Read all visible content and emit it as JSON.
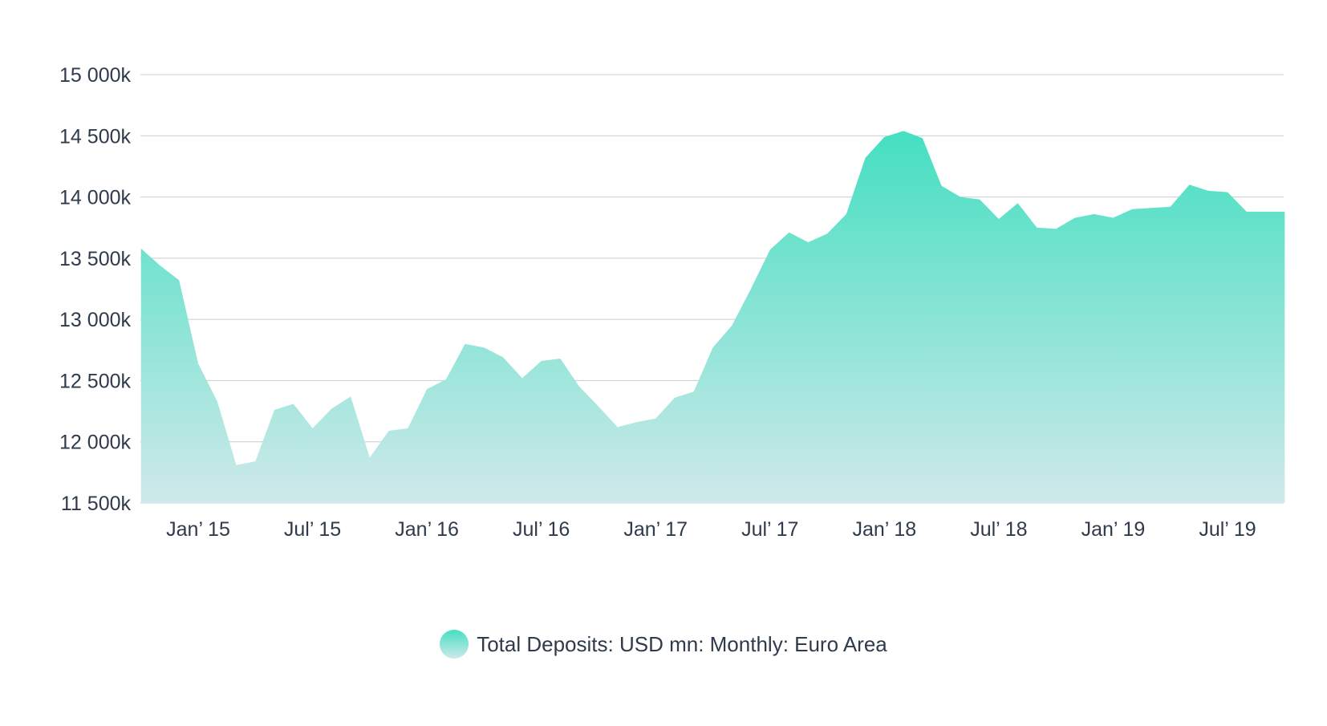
{
  "chart_data": {
    "type": "area",
    "title": "",
    "xlabel": "",
    "ylabel": "",
    "ylim": [
      11500,
      15000
    ],
    "yticks": [
      {
        "value": 15000,
        "label": "15 000k"
      },
      {
        "value": 14500,
        "label": "14 500k"
      },
      {
        "value": 14000,
        "label": "14 000k"
      },
      {
        "value": 13500,
        "label": "13 500k"
      },
      {
        "value": 13000,
        "label": "13 000k"
      },
      {
        "value": 12500,
        "label": "12 500k"
      },
      {
        "value": 12000,
        "label": "12 000k"
      },
      {
        "value": 11500,
        "label": "11 500k"
      }
    ],
    "xticks": [
      {
        "date": "2015-01",
        "label": "Jan’ 15"
      },
      {
        "date": "2015-07",
        "label": "Jul’ 15"
      },
      {
        "date": "2016-01",
        "label": "Jan’ 16"
      },
      {
        "date": "2016-07",
        "label": "Jul’ 16"
      },
      {
        "date": "2017-01",
        "label": "Jan’ 17"
      },
      {
        "date": "2017-07",
        "label": "Jul’ 17"
      },
      {
        "date": "2018-01",
        "label": "Jan’ 18"
      },
      {
        "date": "2018-07",
        "label": "Jul’ 18"
      },
      {
        "date": "2019-01",
        "label": "Jan’ 19"
      },
      {
        "date": "2019-07",
        "label": "Jul’ 19"
      }
    ],
    "grid": true,
    "legend": "bottom-center",
    "series": [
      {
        "name": "Total Deposits: USD mn: Monthly: Euro Area",
        "color_top": "#44dfc1",
        "color_bottom": "#cfe9ea",
        "x": [
          "2014-10",
          "2014-11",
          "2014-12",
          "2015-01",
          "2015-02",
          "2015-03",
          "2015-04",
          "2015-05",
          "2015-06",
          "2015-07",
          "2015-08",
          "2015-09",
          "2015-10",
          "2015-11",
          "2015-12",
          "2016-01",
          "2016-02",
          "2016-03",
          "2016-04",
          "2016-05",
          "2016-06",
          "2016-07",
          "2016-08",
          "2016-09",
          "2016-10",
          "2016-11",
          "2016-12",
          "2017-01",
          "2017-02",
          "2017-03",
          "2017-04",
          "2017-05",
          "2017-06",
          "2017-07",
          "2017-08",
          "2017-09",
          "2017-10",
          "2017-11",
          "2017-12",
          "2018-01",
          "2018-02",
          "2018-03",
          "2018-04",
          "2018-05",
          "2018-06",
          "2018-07",
          "2018-08",
          "2018-09",
          "2018-10",
          "2018-11",
          "2018-12",
          "2019-01",
          "2019-02",
          "2019-03",
          "2019-04",
          "2019-05",
          "2019-06",
          "2019-07",
          "2019-08",
          "2019-09",
          "2019-10"
        ],
        "values": [
          13580,
          13440,
          13320,
          12640,
          12330,
          11810,
          11840,
          12260,
          12310,
          12110,
          12270,
          12370,
          11870,
          12090,
          12110,
          12430,
          12510,
          12800,
          12770,
          12690,
          12520,
          12660,
          12680,
          12450,
          12290,
          12120,
          12160,
          12190,
          12360,
          12410,
          12770,
          12950,
          13250,
          13570,
          13710,
          13630,
          13700,
          13860,
          14320,
          14490,
          14540,
          14480,
          14090,
          14000,
          13980,
          13820,
          13950,
          13750,
          13740,
          13830,
          13860,
          13830,
          13900,
          13910,
          13920,
          14100,
          14050,
          14040,
          13880,
          13880,
          13880
        ]
      }
    ]
  }
}
